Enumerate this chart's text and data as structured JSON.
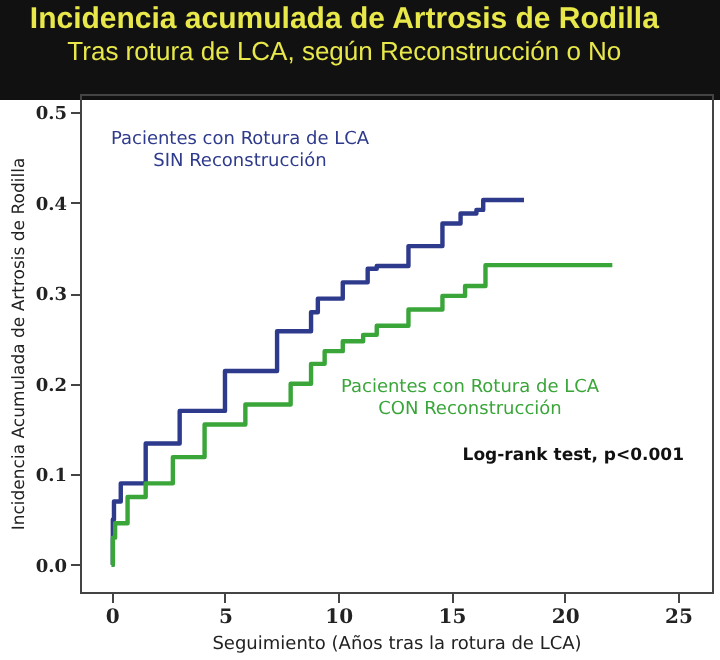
{
  "chart_data": {
    "type": "step",
    "title": "Incidencia acumulada de Artrosis de Rodilla",
    "subtitle": "Tras rotura de LCA, según Reconstrucción o No",
    "xlabel": "Seguimiento (Años tras la rotura de LCA)",
    "ylabel": "Incidencia Acumulada de Artrosis de Rodilla",
    "xlim": [
      -1.4,
      26.5
    ],
    "xticks": [
      0,
      5,
      10,
      15,
      20,
      25
    ],
    "ylim": [
      -0.03,
      0.52
    ],
    "yticks": [
      {
        "value": 0,
        "label": "0.0"
      },
      {
        "value": 0.1,
        "label": "0.1"
      },
      {
        "value": 0.2,
        "label": "0.2"
      },
      {
        "value": 0.3,
        "label": "0.3"
      },
      {
        "value": 0.4,
        "label": "0.4"
      },
      {
        "value": 0.5,
        "label": "0.5"
      }
    ],
    "grid": false,
    "series": [
      {
        "name": "Pacientes con Rotura de LCA\nSIN Reconstrucción",
        "color": "#2e3a8c",
        "x": [
          0,
          0.05,
          0.1,
          0.4,
          1.5,
          3,
          5,
          7.3,
          8.8,
          9.1,
          10.2,
          11.3,
          11.7,
          13.1,
          14.6,
          15.4,
          16.1,
          16.4,
          18.2
        ],
        "values": [
          0,
          0.05,
          0.07,
          0.09,
          0.134,
          0.17,
          0.214,
          0.258,
          0.279,
          0.294,
          0.312,
          0.327,
          0.33,
          0.352,
          0.377,
          0.388,
          0.392,
          0.403,
          0.403
        ]
      },
      {
        "name": "Pacientes con Rotura de LCA\nCON Reconstrucción",
        "color": "#3aa63a",
        "x": [
          0,
          0.05,
          0.15,
          0.7,
          1.5,
          2.7,
          4.1,
          5.9,
          7.9,
          8.8,
          9.4,
          10.2,
          11.1,
          11.7,
          13.1,
          14.6,
          15.6,
          16.5,
          22.1
        ],
        "values": [
          0,
          0.03,
          0.046,
          0.075,
          0.09,
          0.119,
          0.155,
          0.177,
          0.2,
          0.222,
          0.236,
          0.247,
          0.254,
          0.264,
          0.282,
          0.297,
          0.308,
          0.331,
          0.331
        ]
      }
    ],
    "annotations": [
      "Log-rank test, p<0.001"
    ]
  }
}
